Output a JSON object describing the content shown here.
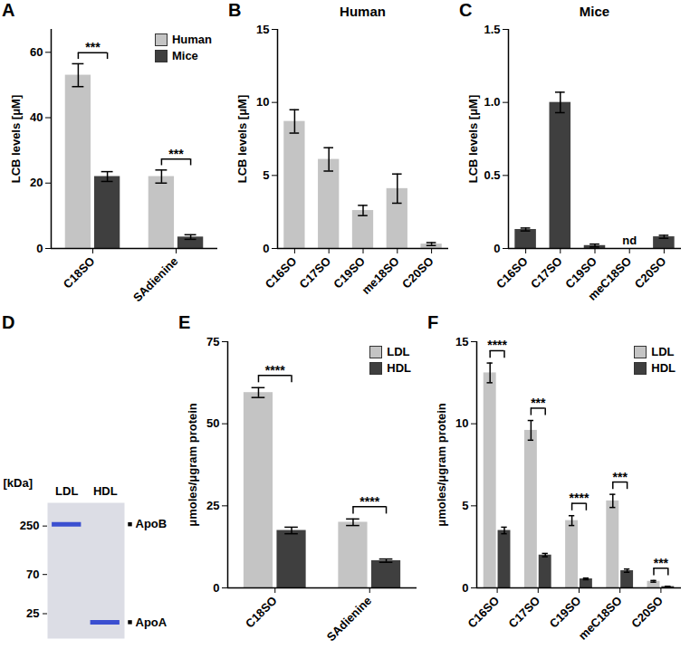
{
  "chart_data": [
    {
      "panel": "A",
      "type": "bar",
      "ylabel": "LCB levels [μM]",
      "categories": [
        "C18SO",
        "SAdienine"
      ],
      "series": [
        {
          "name": "Human",
          "color": "#c4c4c4",
          "values": [
            53,
            22
          ],
          "errors": [
            3.5,
            2
          ]
        },
        {
          "name": "Mice",
          "color": "#3f3f3f",
          "values": [
            22,
            3.5
          ],
          "errors": [
            1.5,
            0.7
          ]
        }
      ],
      "significance": [
        "***",
        "***"
      ],
      "ylim": [
        0,
        67
      ],
      "yticks": [
        0,
        20,
        40,
        60
      ],
      "legend": "top-right"
    },
    {
      "panel": "B",
      "type": "bar",
      "title": "Human",
      "ylabel": "LCB levels [μM]",
      "categories": [
        "C16SO",
        "C17SO",
        "C19SO",
        "me18SO",
        "C20SO"
      ],
      "values": [
        8.7,
        6.1,
        2.6,
        4.1,
        0.3
      ],
      "errors": [
        0.8,
        0.8,
        0.35,
        1.0,
        0.1
      ],
      "color": "#c4c4c4",
      "ylim": [
        0,
        15
      ],
      "yticks": [
        0,
        5,
        10,
        15
      ]
    },
    {
      "panel": "C",
      "type": "bar",
      "title": "Mice",
      "ylabel": "LCB levels [μM]",
      "categories": [
        "C16SO",
        "C17SO",
        "C19SO",
        "meC18SO",
        "C20SO"
      ],
      "values": [
        0.13,
        1.0,
        0.02,
        null,
        0.08
      ],
      "errors": [
        0.01,
        0.07,
        0.01,
        null,
        0.01
      ],
      "color": "#3f3f3f",
      "annotations": [
        {
          "category": "meC18SO",
          "text": "nd"
        }
      ],
      "ylim": [
        0,
        1.5
      ],
      "yticks": [
        0,
        0.5,
        {
          "value": 1,
          "label": "1.0"
        },
        1.5
      ]
    },
    {
      "panel": "D",
      "type": "gel",
      "ylabel": "[kDa]",
      "lanes": [
        "LDL",
        "HDL"
      ],
      "log": "y",
      "ylim": [
        13,
        460
      ],
      "yticks": [
        250,
        70,
        25
      ],
      "color": "#3b4fd0",
      "bands": [
        {
          "lane": "LDL",
          "kDa": 262,
          "label": "ApoB"
        },
        {
          "lane": "HDL",
          "kDa": 20,
          "label": "ApoA"
        }
      ]
    },
    {
      "panel": "E",
      "type": "bar",
      "ylabel": "μmoles/μgram protein",
      "categories": [
        "C18SO",
        "SAdienine"
      ],
      "series": [
        {
          "name": "LDL",
          "color": "#c4c4c4",
          "values": [
            59.5,
            20
          ],
          "errors": [
            1.5,
            1
          ]
        },
        {
          "name": "HDL",
          "color": "#3f3f3f",
          "values": [
            17.5,
            8.3
          ],
          "errors": [
            1,
            0.5
          ]
        }
      ],
      "significance": [
        "****",
        "****"
      ],
      "ylim": [
        0,
        75
      ],
      "yticks": [
        0,
        25,
        50,
        75
      ],
      "legend": "top-right"
    },
    {
      "panel": "F",
      "type": "bar",
      "ylabel": "μmoles/μgram protein",
      "categories": [
        "C16SO",
        "C17SO",
        "C19SO",
        "meC18SO",
        "C20SO"
      ],
      "series": [
        {
          "name": "LDL",
          "color": "#c4c4c4",
          "values": [
            13.1,
            9.6,
            4.1,
            5.3,
            0.4
          ],
          "errors": [
            0.6,
            0.6,
            0.3,
            0.4,
            0.05
          ]
        },
        {
          "name": "HDL",
          "color": "#3f3f3f",
          "values": [
            3.5,
            2.0,
            0.55,
            1.05,
            0.08
          ],
          "errors": [
            0.2,
            0.1,
            0.05,
            0.1,
            0.02
          ]
        }
      ],
      "significance": [
        "****",
        "***",
        "****",
        "***",
        "***"
      ],
      "ylim": [
        0,
        15
      ],
      "yticks": [
        0,
        5,
        10,
        15
      ],
      "legend": "top-right"
    }
  ]
}
